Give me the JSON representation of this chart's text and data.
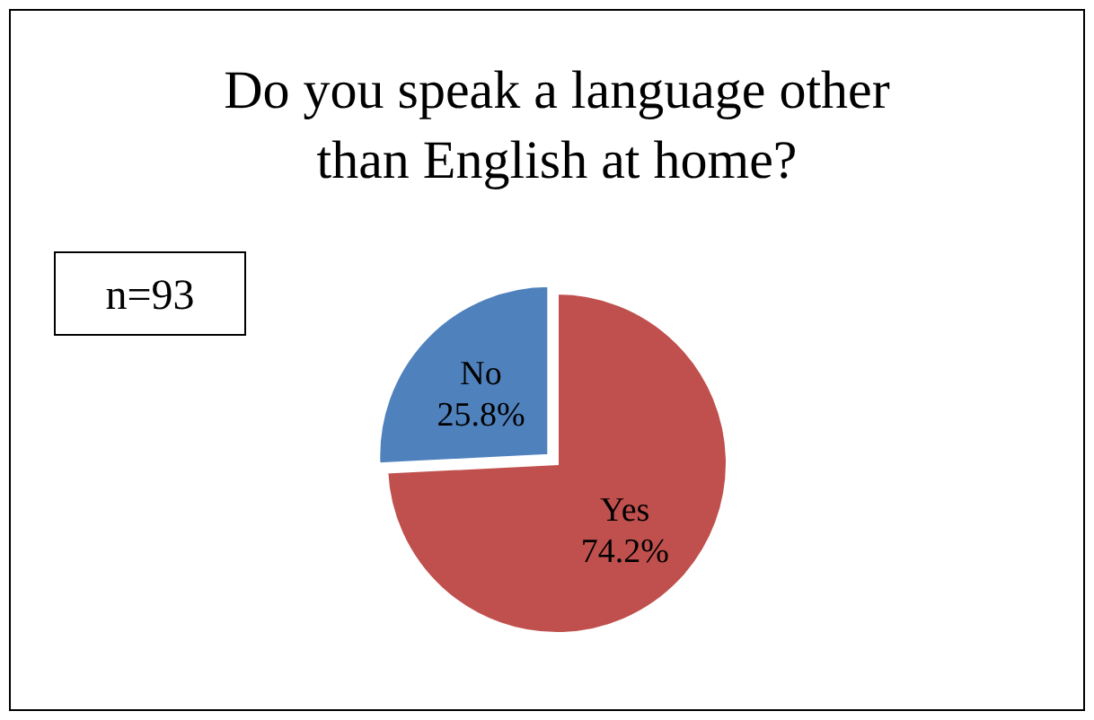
{
  "chart_data": {
    "type": "pie",
    "title": "Do you speak a language other than English at home?",
    "categories": [
      "Yes",
      "No"
    ],
    "values": [
      74.2,
      25.8
    ],
    "colors": [
      "#c0504d",
      "#4f81bd"
    ],
    "value_labels": [
      "74.2%",
      "25.8%"
    ],
    "annotations": [
      "n=93"
    ],
    "legend": false
  }
}
